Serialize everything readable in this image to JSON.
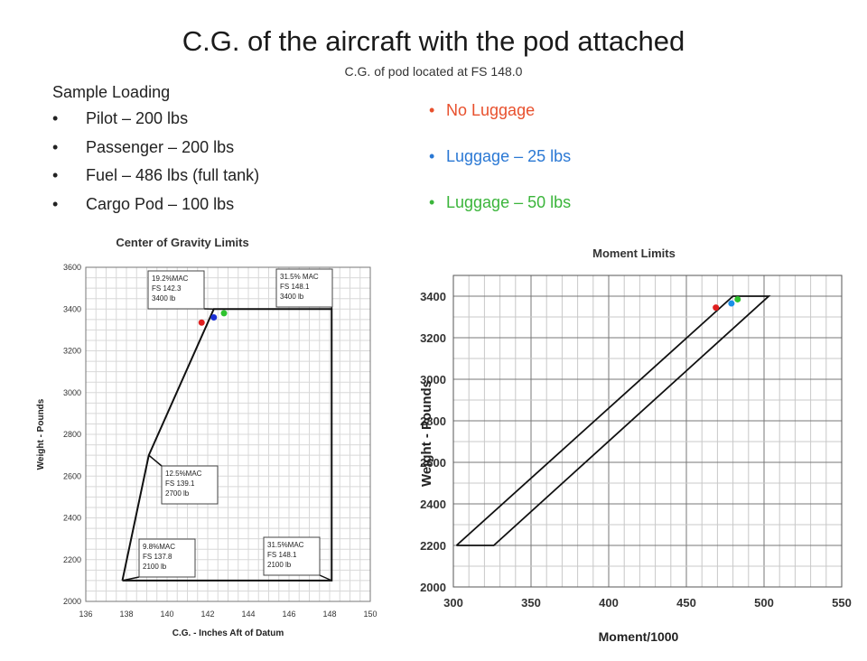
{
  "slide": {
    "title": "C.G. of the aircraft with the pod attached",
    "subtitle": "C.G. of pod located at FS 148.0"
  },
  "loading": {
    "heading": "Sample Loading",
    "items": [
      "Pilot – 200 lbs",
      "Passenger – 200 lbs",
      "Fuel – 486 lbs (full tank)",
      "Cargo Pod – 100 lbs"
    ]
  },
  "legend": [
    {
      "label": "No Luggage",
      "color": "#e8502d"
    },
    {
      "label": "Luggage – 25 lbs",
      "color": "#2a78d4"
    },
    {
      "label": "Luggage – 50 lbs",
      "color": "#3bb53b"
    }
  ],
  "chart_data": [
    {
      "type": "line",
      "title": "Center of Gravity Limits",
      "xlabel": "C.G. - Inches Aft of Datum",
      "ylabel": "Weight - Pounds",
      "xlim": [
        136,
        150
      ],
      "ylim": [
        2000,
        3600
      ],
      "xticks": [
        "136",
        "138",
        "140",
        "142",
        "144",
        "146",
        "148",
        "150"
      ],
      "yticks": [
        "2000",
        "2200",
        "2400",
        "2600",
        "2800",
        "3000",
        "3200",
        "3400",
        "3600"
      ],
      "grid": true,
      "envelope": [
        [
          137.8,
          2100
        ],
        [
          139.1,
          2700
        ],
        [
          142.3,
          3400
        ],
        [
          148.1,
          3400
        ],
        [
          148.1,
          2100
        ],
        [
          137.8,
          2100
        ]
      ],
      "annotations": [
        {
          "lines": [
            "19.2%MAC",
            "FS 142.3",
            "3400 lb"
          ],
          "point": [
            142.3,
            3400
          ]
        },
        {
          "lines": [
            "31.5% MAC",
            "FS 148.1",
            "3400 lb"
          ],
          "point": [
            148.1,
            3400
          ]
        },
        {
          "lines": [
            "12.5%MAC",
            "FS 139.1",
            "2700 lb"
          ],
          "point": [
            139.1,
            2700
          ]
        },
        {
          "lines": [
            "9.8%MAC",
            "FS 137.8",
            "2100 lb"
          ],
          "point": [
            137.8,
            2100
          ]
        },
        {
          "lines": [
            "31.5%MAC",
            "FS 148.1",
            "2100 lb"
          ],
          "point": [
            148.1,
            2100
          ]
        }
      ],
      "points": [
        {
          "x": 141.7,
          "y": 3335,
          "color": "#e02020"
        },
        {
          "x": 142.3,
          "y": 3360,
          "color": "#1a2fd6"
        },
        {
          "x": 142.8,
          "y": 3380,
          "color": "#2ec22e"
        }
      ]
    },
    {
      "type": "line",
      "title": "Moment Limits",
      "xlabel": "Moment/1000",
      "ylabel": "Weight - Pounds",
      "xlim": [
        300,
        550
      ],
      "ylim": [
        2000,
        3500
      ],
      "xticks": [
        "300",
        "350",
        "400",
        "450",
        "500",
        "550"
      ],
      "yticks": [
        "2000",
        "2200",
        "2400",
        "2600",
        "2800",
        "3000",
        "3200",
        "3400"
      ],
      "grid": true,
      "envelope": [
        [
          302,
          2200
        ],
        [
          326,
          2200
        ],
        [
          503,
          3400
        ],
        [
          480,
          3400
        ],
        [
          302,
          2200
        ]
      ],
      "points": [
        {
          "x": 469,
          "y": 3345,
          "color": "#e02020"
        },
        {
          "x": 479,
          "y": 3365,
          "color": "#1a8fe8"
        },
        {
          "x": 483,
          "y": 3385,
          "color": "#2ec22e"
        }
      ]
    }
  ]
}
